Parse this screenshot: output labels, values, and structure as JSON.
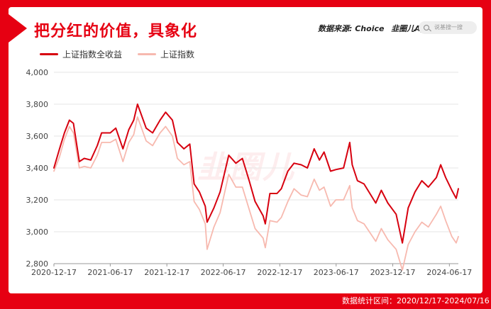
{
  "title": "把分红的价值，具象化",
  "source_label": "数据来源: Choice",
  "app_label": "韭圈儿App",
  "search_placeholder": "说基搜一搜",
  "watermark": "韭圈儿",
  "footer": "数据统计区间：2020/12/17-2024/07/16",
  "colors": {
    "brand": "#e60012",
    "total_return": "#d7000f",
    "index": "#f7b9af"
  },
  "icons": [
    "search-icon"
  ],
  "chart_data": {
    "type": "line",
    "title": "",
    "xlabel": "",
    "ylabel": "",
    "ylim": [
      2800,
      4000
    ],
    "yticks": [
      "4,000",
      "3,800",
      "3,600",
      "3,400",
      "3,200",
      "3,000",
      "2,800"
    ],
    "xticks": [
      "2020-12-17",
      "2021-06-17",
      "2021-12-17",
      "2022-06-17",
      "2022-12-17",
      "2023-06-17",
      "2023-12-17",
      "2024-06-17"
    ],
    "grid": true,
    "legend": "top-left",
    "x": [
      "2020-12-17",
      "2021-01-04",
      "2021-01-20",
      "2021-02-05",
      "2021-02-18",
      "2021-03-09",
      "2021-03-25",
      "2021-04-15",
      "2021-05-06",
      "2021-05-20",
      "2021-06-17",
      "2021-07-05",
      "2021-07-28",
      "2021-08-16",
      "2021-09-01",
      "2021-09-13",
      "2021-10-11",
      "2021-11-01",
      "2021-11-25",
      "2021-12-13",
      "2022-01-04",
      "2022-01-20",
      "2022-02-10",
      "2022-03-01",
      "2022-03-15",
      "2022-04-01",
      "2022-04-20",
      "2022-04-26",
      "2022-05-18",
      "2022-06-07",
      "2022-07-05",
      "2022-07-28",
      "2022-08-18",
      "2022-09-09",
      "2022-09-28",
      "2022-10-24",
      "2022-10-31",
      "2022-11-15",
      "2022-12-08",
      "2022-12-22",
      "2023-01-12",
      "2023-02-01",
      "2023-02-24",
      "2023-03-16",
      "2023-04-07",
      "2023-04-24",
      "2023-05-09",
      "2023-05-30",
      "2023-06-16",
      "2023-07-11",
      "2023-07-31",
      "2023-08-08",
      "2023-08-25",
      "2023-09-15",
      "2023-10-23",
      "2023-11-10",
      "2023-12-01",
      "2023-12-28",
      "2024-01-17",
      "2024-02-05",
      "2024-02-27",
      "2024-03-20",
      "2024-04-10",
      "2024-05-06",
      "2024-05-20",
      "2024-06-05",
      "2024-06-25",
      "2024-07-09",
      "2024-07-16"
    ],
    "series": [
      {
        "name": "上证指数全收益",
        "values": [
          3400,
          3520,
          3620,
          3700,
          3680,
          3440,
          3460,
          3450,
          3540,
          3620,
          3620,
          3650,
          3520,
          3640,
          3700,
          3800,
          3650,
          3620,
          3700,
          3750,
          3700,
          3560,
          3520,
          3550,
          3300,
          3250,
          3160,
          3060,
          3150,
          3250,
          3480,
          3430,
          3460,
          3320,
          3190,
          3100,
          3050,
          3240,
          3240,
          3270,
          3380,
          3430,
          3420,
          3400,
          3520,
          3450,
          3500,
          3380,
          3390,
          3400,
          3560,
          3420,
          3320,
          3300,
          3180,
          3260,
          3180,
          3110,
          2930,
          3150,
          3250,
          3320,
          3280,
          3340,
          3420,
          3340,
          3260,
          3210,
          3270
        ]
      },
      {
        "name": "上证指数",
        "values": [
          3380,
          3470,
          3580,
          3660,
          3620,
          3400,
          3410,
          3400,
          3480,
          3560,
          3560,
          3580,
          3440,
          3560,
          3610,
          3720,
          3570,
          3540,
          3620,
          3660,
          3600,
          3460,
          3420,
          3440,
          3190,
          3140,
          3050,
          2890,
          3030,
          3120,
          3360,
          3280,
          3280,
          3140,
          3020,
          2960,
          2900,
          3070,
          3060,
          3090,
          3190,
          3270,
          3230,
          3220,
          3330,
          3260,
          3280,
          3160,
          3200,
          3200,
          3290,
          3150,
          3070,
          3050,
          2940,
          3020,
          2950,
          2890,
          2760,
          2920,
          3000,
          3060,
          3030,
          3110,
          3160,
          3070,
          2970,
          2930,
          2970
        ]
      }
    ]
  }
}
